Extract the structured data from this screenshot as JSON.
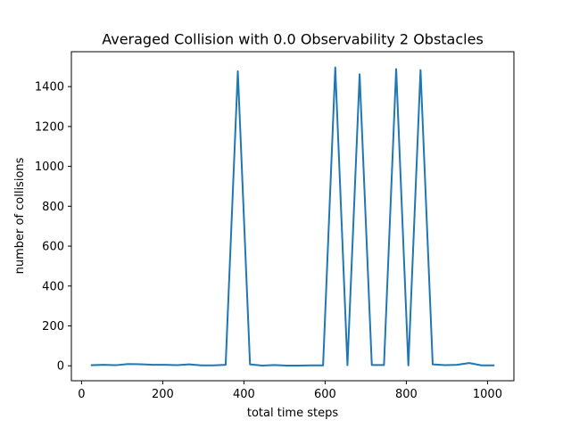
{
  "chart_data": {
    "type": "line",
    "title": "Averaged Collision with 0.0 Observability 2 Obstacles",
    "xlabel": "total time steps",
    "ylabel": "number of collisions",
    "xlim": [
      -25,
      1065
    ],
    "ylim": [
      -75,
      1575
    ],
    "xticks": [
      0,
      200,
      400,
      600,
      800,
      1000
    ],
    "yticks": [
      0,
      200,
      400,
      600,
      800,
      1000,
      1200,
      1400
    ],
    "grid": false,
    "line_color": "#1f77b4",
    "series": [
      {
        "x": [
          25,
          55,
          85,
          115,
          145,
          175,
          205,
          235,
          265,
          295,
          325,
          355,
          385,
          415,
          445,
          475,
          505,
          535,
          565,
          595,
          625,
          655,
          685,
          715,
          745,
          775,
          805,
          835,
          865,
          895,
          925,
          955,
          985,
          1015
        ],
        "y": [
          3,
          5,
          3,
          9,
          8,
          5,
          5,
          3,
          7,
          2,
          2,
          5,
          1477,
          7,
          1,
          4,
          1,
          1,
          2,
          2,
          1496,
          3,
          1462,
          4,
          4,
          1488,
          2,
          1483,
          7,
          3,
          5,
          14,
          2,
          2
        ]
      }
    ]
  }
}
